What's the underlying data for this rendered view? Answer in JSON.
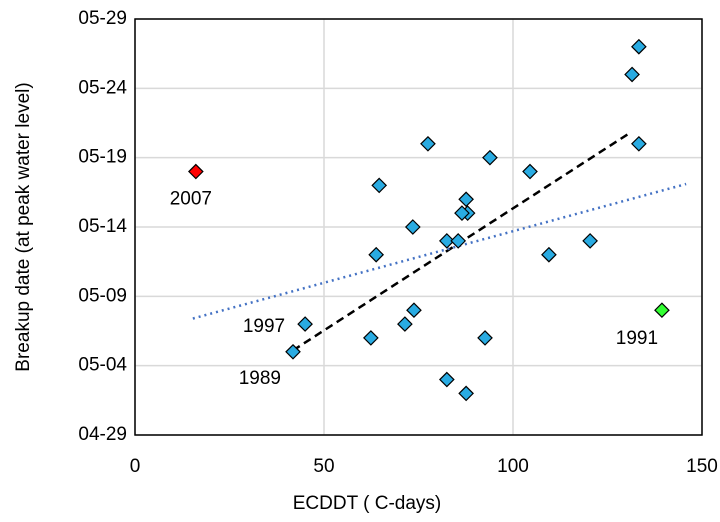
{
  "chart_data": {
    "type": "scatter",
    "xlabel": "ECDDT ( C-days)",
    "ylabel": "Breakup date (at peak water level)",
    "xlim": [
      0,
      150
    ],
    "xticks": [
      0,
      50,
      100,
      150
    ],
    "ylim": [
      119,
      149
    ],
    "yticks": [
      {
        "value": 119,
        "label": "04-29"
      },
      {
        "value": 124,
        "label": "05-04"
      },
      {
        "value": 129,
        "label": "05-09"
      },
      {
        "value": 134,
        "label": "05-14"
      },
      {
        "value": 139,
        "label": "05-19"
      },
      {
        "value": 144,
        "label": "05-24"
      },
      {
        "value": 149,
        "label": "05-29"
      }
    ],
    "grid": true,
    "series": [
      {
        "color": "#29abe2",
        "x": [
          133.3,
          131.5,
          133.3,
          77.5,
          93.9,
          104.5,
          64.6,
          87.6,
          88,
          86.5,
          73.5,
          82.5,
          85.5,
          120.4,
          63.8,
          109.5,
          73.8,
          71.4,
          45,
          62.4,
          92.6,
          41.8,
          82.5,
          87.6
        ],
        "y": [
          147,
          145,
          140,
          140,
          139,
          138,
          137,
          136,
          135,
          135,
          134,
          133,
          133,
          133,
          132,
          132,
          128,
          127,
          127,
          126,
          126,
          125,
          123,
          122
        ]
      },
      {
        "color": "#ff0000",
        "x": [
          16.1
        ],
        "y": [
          138
        ]
      },
      {
        "color": "#33ff33",
        "x": [
          139.4
        ],
        "y": [
          128
        ]
      }
    ],
    "lines": [
      {
        "color": "#000000",
        "dash": "8 5",
        "x": [
          41.8,
          131
        ],
        "y": [
          125.1,
          140.8
        ]
      },
      {
        "color": "#4472c4",
        "dash": "2 4",
        "x": [
          15.3,
          145.8
        ],
        "y": [
          127.4,
          137.1
        ]
      }
    ],
    "annotations": [
      {
        "text": "2007",
        "x": 16.1,
        "y": 138
      },
      {
        "text": "1991",
        "x": 139.4,
        "y": 128
      },
      {
        "text": "1997",
        "x": 45,
        "y": 127
      },
      {
        "text": "1989",
        "x": 41.8,
        "y": 125
      }
    ]
  }
}
